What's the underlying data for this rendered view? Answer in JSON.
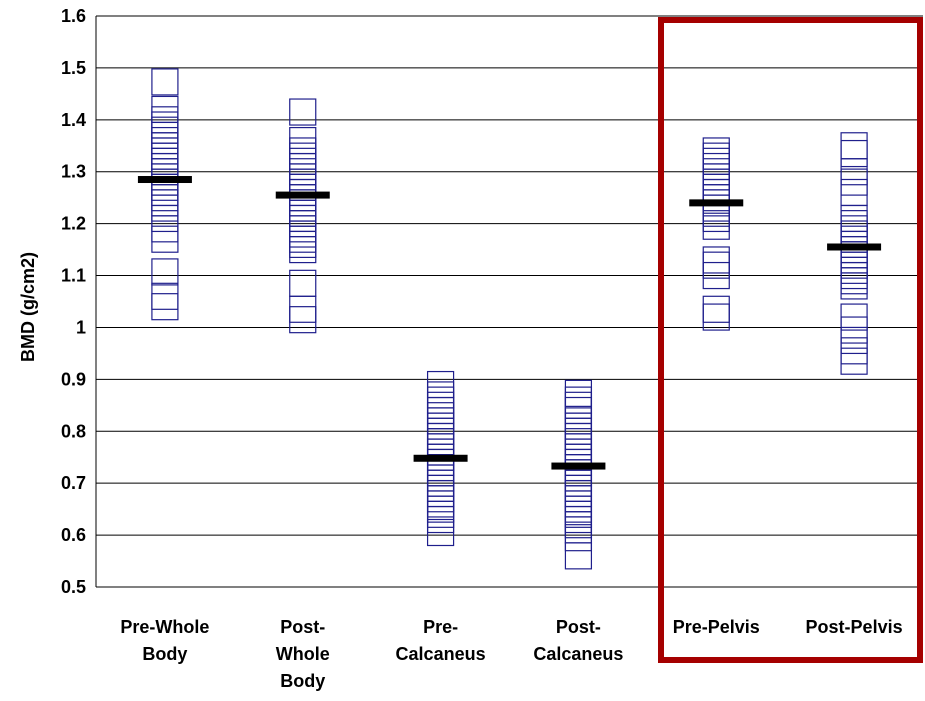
{
  "chart_data": {
    "type": "scatter",
    "title": "",
    "xlabel": "",
    "ylabel": "BMD (g/cm2)",
    "ylim": [
      0.5,
      1.6
    ],
    "yticks": [
      "0.5",
      "0.6",
      "0.7",
      "0.8",
      "0.9",
      "1",
      "1.1",
      "1.2",
      "1.3",
      "1.4",
      "1.5",
      "1.6"
    ],
    "grid": true,
    "categories": [
      [
        "Pre-Whole",
        "Body"
      ],
      [
        "Post-",
        "Whole",
        "Body"
      ],
      [
        "Pre-",
        "Calcaneus"
      ],
      [
        "Post-",
        "Calcaneus"
      ],
      [
        "Pre-Pelvis"
      ],
      [
        "Post-Pelvis"
      ]
    ],
    "series": [
      {
        "points": [
          1.473,
          1.42,
          1.4,
          1.39,
          1.38,
          1.37,
          1.36,
          1.35,
          1.34,
          1.33,
          1.32,
          1.31,
          1.3,
          1.29,
          1.28,
          1.27,
          1.26,
          1.25,
          1.24,
          1.23,
          1.21,
          1.19,
          1.17,
          1.107,
          1.06,
          1.04
        ],
        "mean": 1.285
      },
      {
        "points": [
          1.415,
          1.36,
          1.34,
          1.33,
          1.32,
          1.31,
          1.3,
          1.29,
          1.28,
          1.27,
          1.26,
          1.25,
          1.24,
          1.23,
          1.22,
          1.21,
          1.2,
          1.19,
          1.18,
          1.17,
          1.16,
          1.15,
          1.085,
          1.035,
          1.015
        ],
        "mean": 1.255
      },
      {
        "points": [
          0.89,
          0.87,
          0.86,
          0.85,
          0.84,
          0.83,
          0.82,
          0.81,
          0.8,
          0.79,
          0.78,
          0.77,
          0.76,
          0.75,
          0.74,
          0.73,
          0.72,
          0.71,
          0.7,
          0.69,
          0.68,
          0.67,
          0.66,
          0.65,
          0.64,
          0.63,
          0.605
        ],
        "mean": 0.748
      },
      {
        "points": [
          0.873,
          0.86,
          0.85,
          0.84,
          0.82,
          0.81,
          0.8,
          0.79,
          0.78,
          0.77,
          0.76,
          0.75,
          0.74,
          0.73,
          0.72,
          0.71,
          0.7,
          0.69,
          0.68,
          0.67,
          0.66,
          0.65,
          0.64,
          0.63,
          0.62,
          0.61,
          0.595,
          0.56
        ],
        "mean": 0.733
      },
      {
        "points": [
          1.34,
          1.33,
          1.32,
          1.31,
          1.3,
          1.29,
          1.28,
          1.27,
          1.26,
          1.25,
          1.24,
          1.23,
          1.22,
          1.21,
          1.195,
          1.13,
          1.12,
          1.1,
          1.035,
          1.02
        ],
        "mean": 1.24
      },
      {
        "points": [
          1.35,
          1.335,
          1.3,
          1.28,
          1.26,
          1.21,
          1.2,
          1.19,
          1.18,
          1.17,
          1.16,
          1.15,
          1.14,
          1.13,
          1.12,
          1.11,
          1.1,
          1.09,
          1.08,
          1.02,
          0.995,
          0.975,
          0.955,
          0.935
        ],
        "mean": 1.155
      }
    ],
    "highlight_box": {
      "covers_categories": [
        4,
        5
      ],
      "color": "#a50000"
    },
    "colors": {
      "marker": "#1f1f8c",
      "mean": "#000000",
      "grid": "#000000"
    }
  }
}
